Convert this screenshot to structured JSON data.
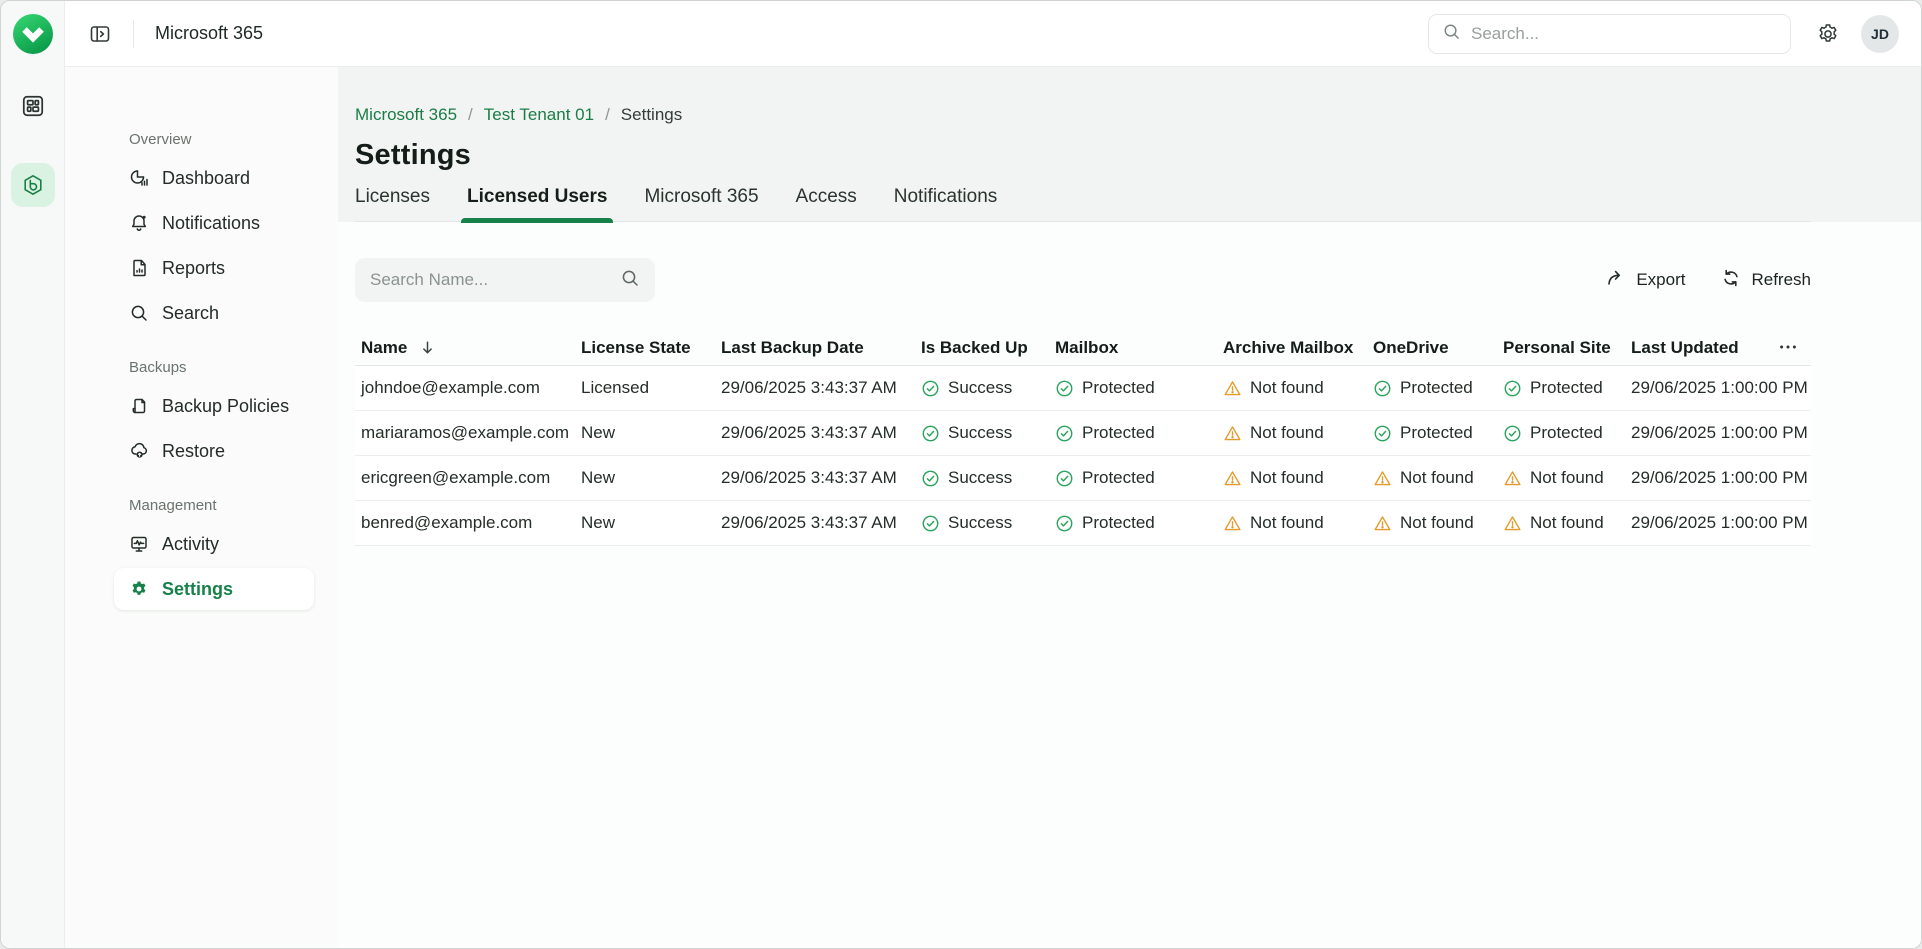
{
  "topbar": {
    "title": "Microsoft 365",
    "search": {
      "placeholder": "Search..."
    },
    "avatar_initials": "JD"
  },
  "sidebar": {
    "sections": [
      {
        "label": "Overview",
        "items": [
          {
            "label": "Dashboard",
            "icon": "dashboard",
            "active": false
          },
          {
            "label": "Notifications",
            "icon": "bell",
            "active": false
          },
          {
            "label": "Reports",
            "icon": "report",
            "active": false
          },
          {
            "label": "Search",
            "icon": "search",
            "active": false
          }
        ]
      },
      {
        "label": "Backups",
        "items": [
          {
            "label": "Backup Policies",
            "icon": "policy",
            "active": false
          },
          {
            "label": "Restore",
            "icon": "restore",
            "active": false
          }
        ]
      },
      {
        "label": "Management",
        "items": [
          {
            "label": "Activity",
            "icon": "activity",
            "active": false
          },
          {
            "label": "Settings",
            "icon": "gear",
            "active": true
          }
        ]
      }
    ]
  },
  "breadcrumb": {
    "items": [
      "Microsoft 365",
      "Test Tenant 01",
      "Settings"
    ],
    "separator": "/"
  },
  "page_title": "Settings",
  "tabs": [
    {
      "label": "Licenses",
      "active": false
    },
    {
      "label": "Licensed Users",
      "active": true
    },
    {
      "label": "Microsoft 365",
      "active": false
    },
    {
      "label": "Access",
      "active": false
    },
    {
      "label": "Notifications",
      "active": false
    }
  ],
  "toolbar": {
    "search_placeholder": "Search Name...",
    "export_label": "Export",
    "refresh_label": "Refresh"
  },
  "table": {
    "columns": [
      "Name",
      "License State",
      "Last Backup Date",
      "Is Backed Up",
      "Mailbox",
      "Archive Mailbox",
      "OneDrive",
      "Personal Site",
      "Last Updated"
    ],
    "sort": {
      "column": "Name",
      "direction": "desc"
    },
    "rows": [
      {
        "cells": [
          {
            "text": "johndoe@example.com"
          },
          {
            "text": "Licensed"
          },
          {
            "text": "29/06/2025 3:43:37 AM"
          },
          {
            "text": "Success",
            "status": "ok"
          },
          {
            "text": "Protected",
            "status": "ok"
          },
          {
            "text": "Not found",
            "status": "warn"
          },
          {
            "text": "Protected",
            "status": "ok"
          },
          {
            "text": "Protected",
            "status": "ok"
          },
          {
            "text": "29/06/2025 1:00:00 PM"
          }
        ]
      },
      {
        "cells": [
          {
            "text": "mariaramos@example.com"
          },
          {
            "text": "New"
          },
          {
            "text": "29/06/2025 3:43:37 AM"
          },
          {
            "text": "Success",
            "status": "ok"
          },
          {
            "text": "Protected",
            "status": "ok"
          },
          {
            "text": "Not found",
            "status": "warn"
          },
          {
            "text": "Protected",
            "status": "ok"
          },
          {
            "text": "Protected",
            "status": "ok"
          },
          {
            "text": "29/06/2025 1:00:00 PM"
          }
        ]
      },
      {
        "cells": [
          {
            "text": "ericgreen@example.com"
          },
          {
            "text": "New"
          },
          {
            "text": "29/06/2025 3:43:37 AM"
          },
          {
            "text": "Success",
            "status": "ok"
          },
          {
            "text": "Protected",
            "status": "ok"
          },
          {
            "text": "Not found",
            "status": "warn"
          },
          {
            "text": "Not found",
            "status": "warn"
          },
          {
            "text": "Not found",
            "status": "warn"
          },
          {
            "text": "29/06/2025 1:00:00 PM"
          }
        ]
      },
      {
        "cells": [
          {
            "text": "benred@example.com"
          },
          {
            "text": "New"
          },
          {
            "text": "29/06/2025 3:43:37 AM"
          },
          {
            "text": "Success",
            "status": "ok"
          },
          {
            "text": "Protected",
            "status": "ok"
          },
          {
            "text": "Not found",
            "status": "warn"
          },
          {
            "text": "Not found",
            "status": "warn"
          },
          {
            "text": "Not found",
            "status": "warn"
          },
          {
            "text": "29/06/2025 1:00:00 PM"
          }
        ]
      }
    ]
  },
  "colors": {
    "brand_green": "#17814A",
    "status_ok": "#2BA35B",
    "status_warn": "#E59B2B",
    "link_green": "#1B7D46"
  }
}
